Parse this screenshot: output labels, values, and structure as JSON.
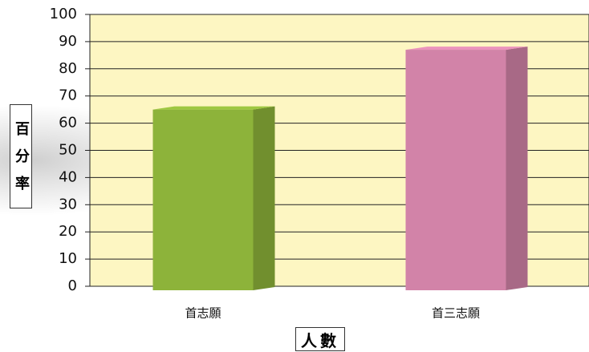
{
  "chart_data": {
    "type": "bar",
    "categories": [
      "首志願",
      "首三志願"
    ],
    "values": [
      65,
      87
    ],
    "colors": [
      "#8db33a",
      "#d283a8"
    ],
    "ylim": [
      0,
      100
    ],
    "yticks": [
      0,
      10,
      20,
      30,
      40,
      50,
      60,
      70,
      80,
      90,
      100
    ],
    "grid": true,
    "ylabel": "百分率",
    "xlabel": "人數"
  }
}
